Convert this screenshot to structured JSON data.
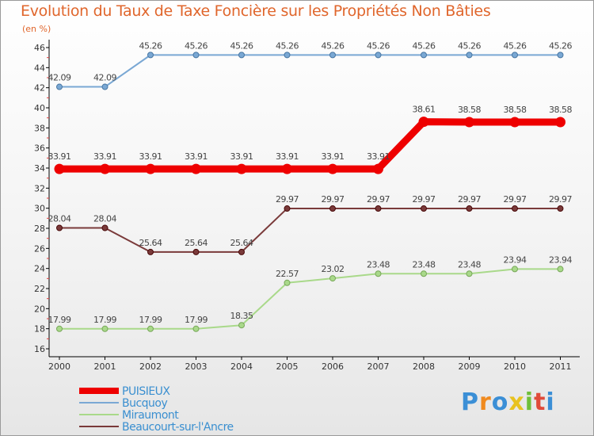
{
  "header": {
    "title": "Evolution du Taux de Taxe Foncière sur les Propriétés Non Bâties",
    "subtitle": "(en %)"
  },
  "logo": {
    "text": "Proxiti",
    "colors": [
      "#3b8fd6",
      "#f08a1e",
      "#3b8fd6",
      "#e8c21f",
      "#6fbf3a",
      "#e04b3a",
      "#3b8fd6"
    ]
  },
  "chart_data": {
    "type": "line",
    "x": [
      "2000",
      "2001",
      "2002",
      "2003",
      "2004",
      "2005",
      "2006",
      "2007",
      "2008",
      "2009",
      "2010",
      "2011"
    ],
    "ylim": [
      16,
      46
    ],
    "yticks": [
      16,
      18,
      20,
      22,
      24,
      26,
      28,
      30,
      32,
      34,
      36,
      38,
      40,
      42,
      44,
      46
    ],
    "grid": false,
    "legend_position": "bottom-left",
    "series": [
      {
        "name": "PUISIEUX",
        "color": "#ee0000",
        "values": [
          33.91,
          33.91,
          33.91,
          33.91,
          33.91,
          33.91,
          33.91,
          33.91,
          38.61,
          38.58,
          38.58,
          38.58
        ],
        "labels": [
          "33.91",
          "33.91",
          "33.91",
          "33.91",
          "33.91",
          "33.91",
          "33.91",
          "33.91",
          "38.61",
          "38.58",
          "38.58",
          "38.58"
        ]
      },
      {
        "name": "Bucquoy",
        "color": "#7aa8d4",
        "values": [
          42.09,
          42.09,
          45.26,
          45.26,
          45.26,
          45.26,
          45.26,
          45.26,
          45.26,
          45.26,
          45.26,
          45.26
        ],
        "labels": [
          "42.09",
          "42.09",
          "45.26",
          "45.26",
          "45.26",
          "45.26",
          "45.26",
          "45.26",
          "45.26",
          "45.26",
          "45.26",
          "45.26"
        ]
      },
      {
        "name": "Miraumont",
        "color": "#a9d98a",
        "values": [
          17.99,
          17.99,
          17.99,
          17.99,
          18.35,
          22.57,
          23.02,
          23.48,
          23.48,
          23.48,
          23.94,
          23.94
        ],
        "labels": [
          "17.99",
          "17.99",
          "17.99",
          "17.99",
          "18.35",
          "22.57",
          "23.02",
          "23.48",
          "23.48",
          "23.48",
          "23.94",
          "23.94"
        ]
      },
      {
        "name": "Beaucourt-sur-l'Ancre",
        "color": "#7a3a3a",
        "values": [
          28.04,
          28.04,
          25.64,
          25.64,
          25.64,
          29.97,
          29.97,
          29.97,
          29.97,
          29.97,
          29.97,
          29.97
        ],
        "labels": [
          "28.04",
          "28.04",
          "25.64",
          "25.64",
          "25.64",
          "29.97",
          "29.97",
          "29.97",
          "29.97",
          "29.97",
          "29.97",
          "29.97"
        ]
      }
    ]
  }
}
